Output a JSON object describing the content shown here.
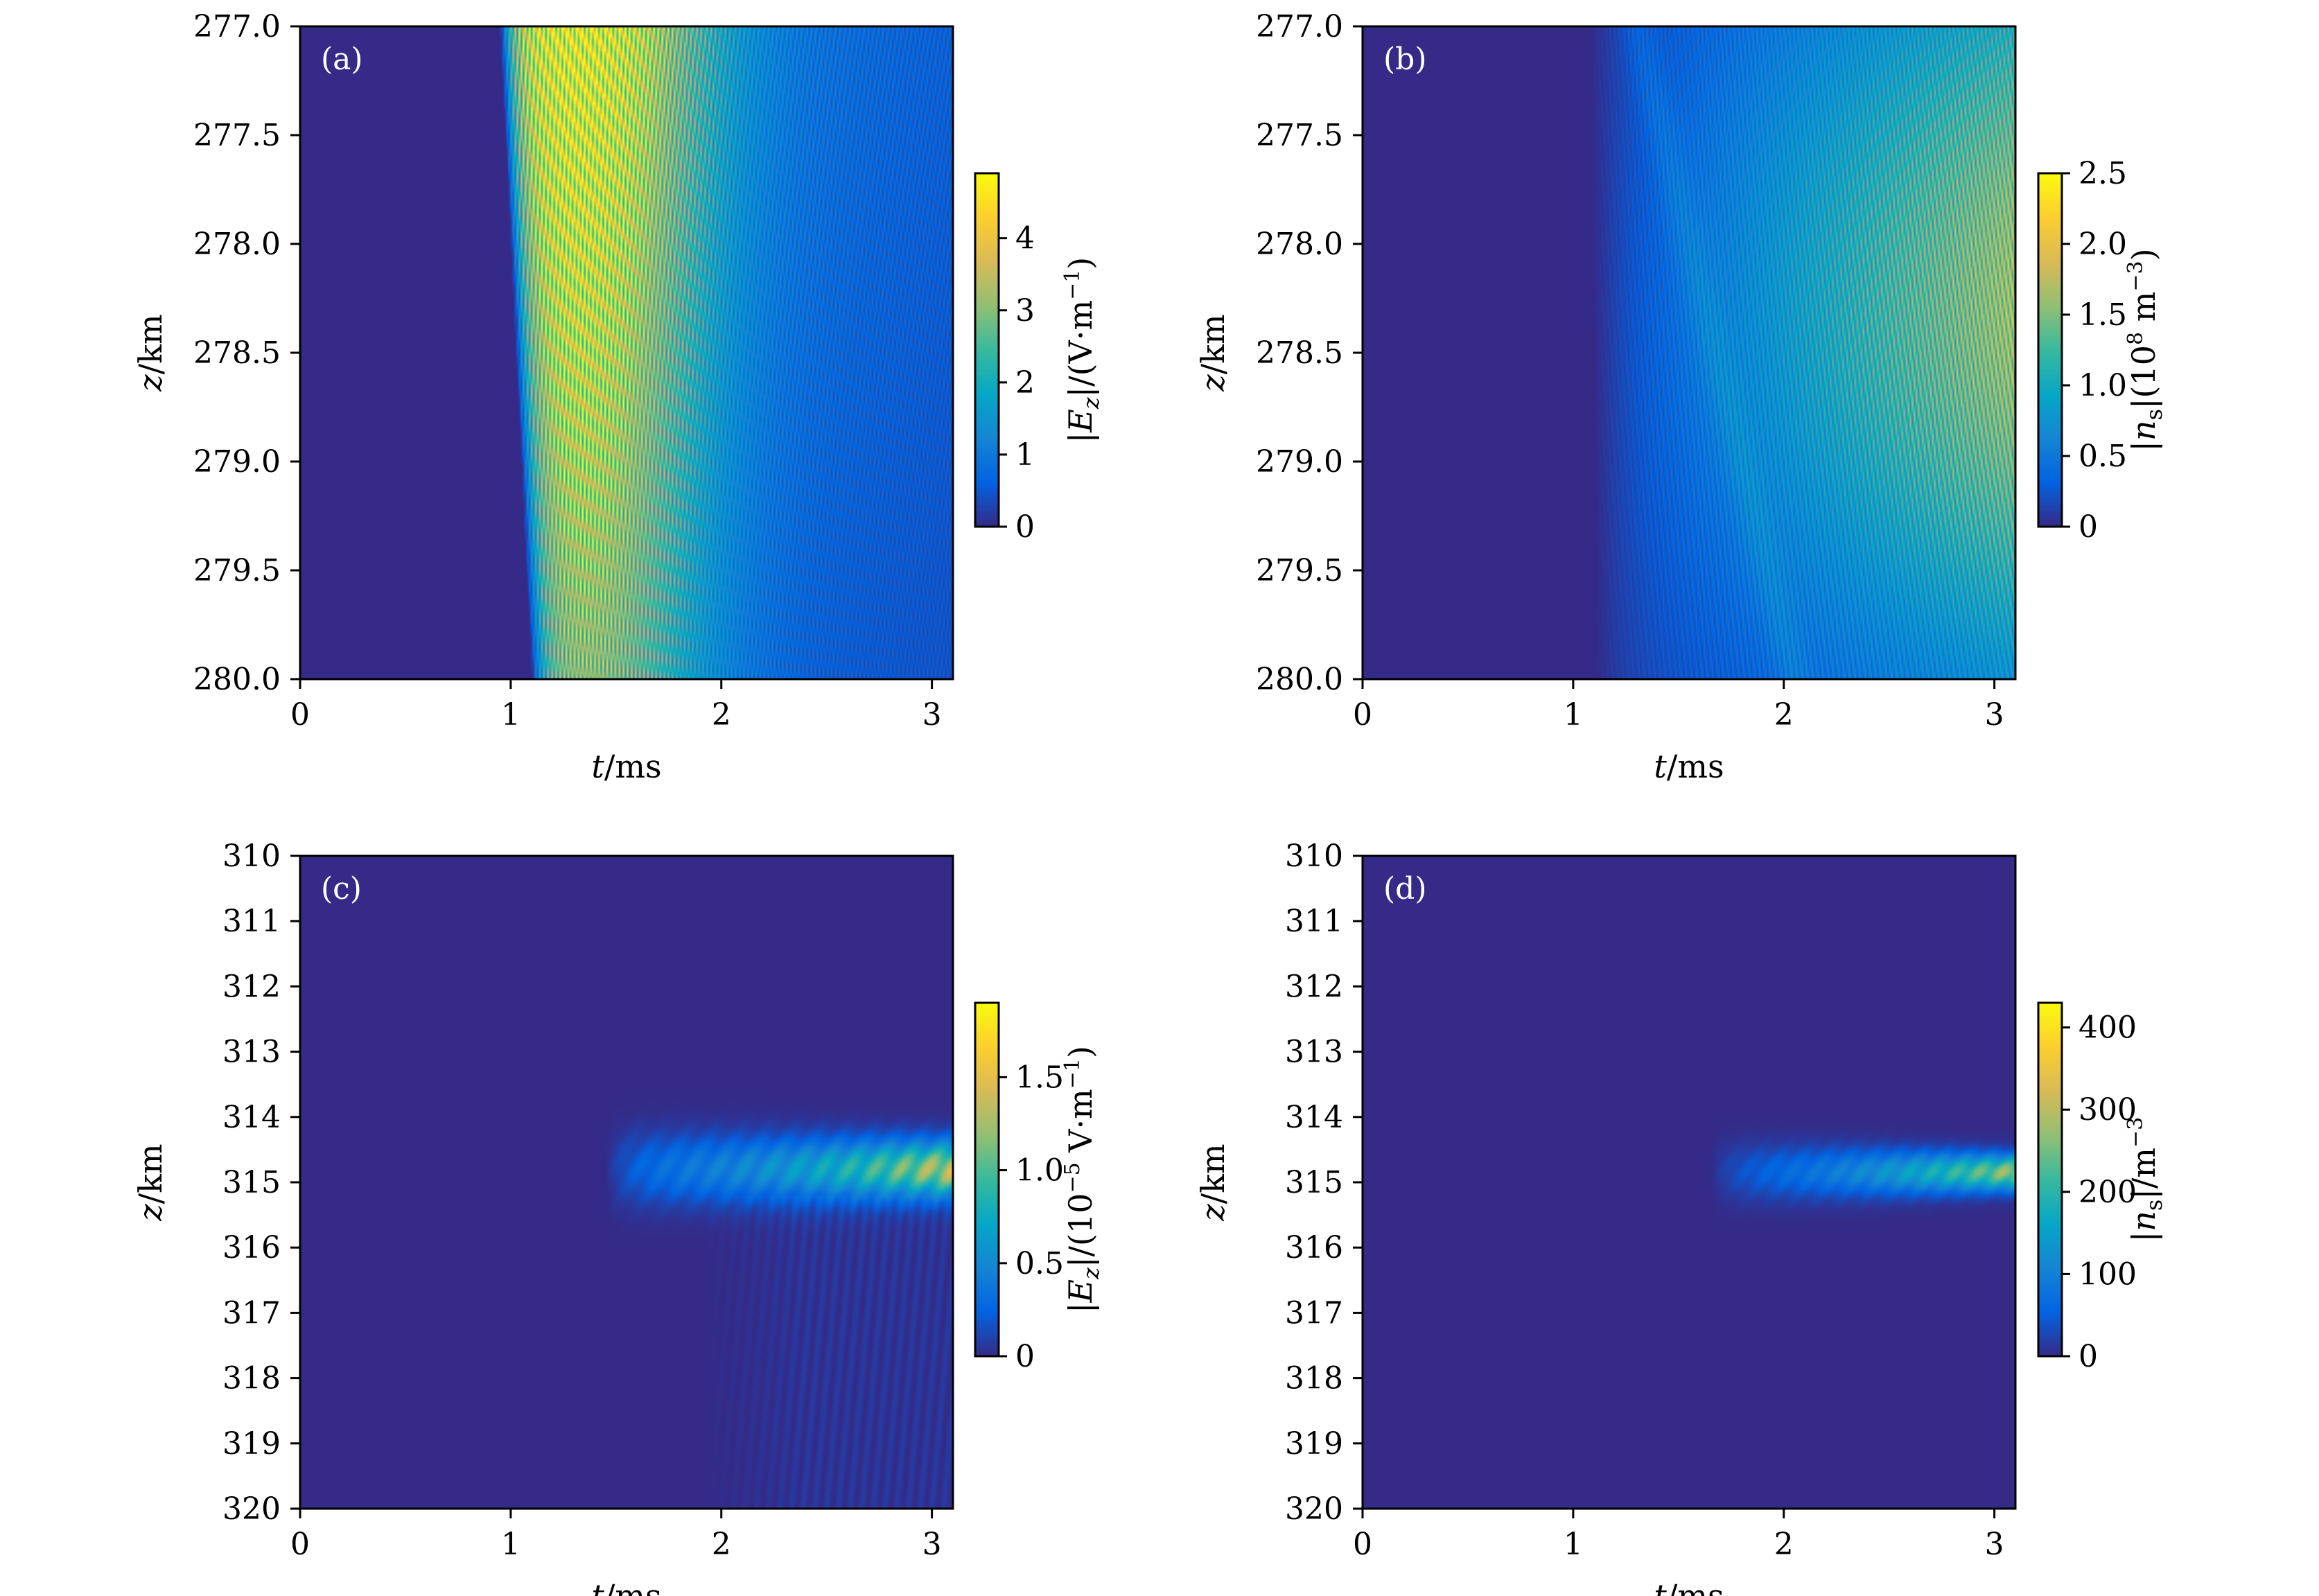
{
  "colormap": [
    "#352a87",
    "#0363e1",
    "#1485d4",
    "#06a7c6",
    "#38b99e",
    "#92bf73",
    "#d9ba56",
    "#fcce2e",
    "#f9fb0e"
  ],
  "chart_data": [
    {
      "type": "heatmap",
      "panel_label": "(a)",
      "xlabel": "t/ms",
      "ylabel": "z/km",
      "xlim": [
        0,
        3.1
      ],
      "ylim": [
        280.0,
        277.0
      ],
      "xticks": [
        "0",
        "1",
        "2",
        "3"
      ],
      "yticks": [
        "277.0",
        "277.5",
        "278.0",
        "278.5",
        "279.0",
        "279.5",
        "280.0"
      ],
      "colorbar": {
        "label": "|E_z|/(V·m^-1)",
        "range": [
          0,
          4.9
        ],
        "ticks": [
          "0",
          "1",
          "2",
          "3",
          "4"
        ]
      },
      "pattern": "onset at t≈0.95 ms near 277 km to ≈1.1 ms near 280 km; dense oblique fringes; peak ≈4.8 V/m near t≈1.3 ms, z≈278 km; decays toward later times and larger z"
    },
    {
      "type": "heatmap",
      "panel_label": "(b)",
      "xlabel": "t/ms",
      "ylabel": "z/km",
      "xlim": [
        0,
        3.1
      ],
      "ylim": [
        280.0,
        277.0
      ],
      "xticks": [
        "0",
        "1",
        "2",
        "3"
      ],
      "yticks": [
        "277.0",
        "277.5",
        "278.0",
        "278.5",
        "279.0",
        "279.5",
        "280.0"
      ],
      "colorbar": {
        "label": "|n_s|(10^8 m^-3)",
        "range": [
          0,
          2.5
        ],
        "ticks": [
          "0",
          "0.5",
          "1.0",
          "1.5",
          "2.0",
          "2.5"
        ]
      },
      "pattern": "onset at t≈1.1 ms; amplitude grows with time; maximum ≈2.2 at t≈3.1 ms, z≈278.3 km; dense oblique fringes"
    },
    {
      "type": "heatmap",
      "panel_label": "(c)",
      "xlabel": "t/ms",
      "ylabel": "z/km",
      "xlim": [
        0,
        3.1
      ],
      "ylim": [
        320,
        310
      ],
      "xticks": [
        "0",
        "1",
        "2",
        "3"
      ],
      "yticks": [
        "310",
        "311",
        "312",
        "313",
        "314",
        "315",
        "316",
        "317",
        "318",
        "319",
        "320"
      ],
      "colorbar": {
        "label": "|E_z|/(10^-5 V·m^-1)",
        "range": [
          0,
          1.9
        ],
        "ticks": [
          "0",
          "0.5",
          "1.0",
          "1.5"
        ]
      },
      "pattern": "horizontal beam centred at z≈314.8 km starting at t≈1.45 ms, narrowing and intensifying to ≈1.4 at t≈3.1 ms; faint oblique streaks below"
    },
    {
      "type": "heatmap",
      "panel_label": "(d)",
      "xlabel": "t/ms",
      "ylabel": "z/km",
      "xlim": [
        0,
        3.1
      ],
      "ylim": [
        320,
        310
      ],
      "xticks": [
        "0",
        "1",
        "2",
        "3"
      ],
      "yticks": [
        "310",
        "311",
        "312",
        "313",
        "314",
        "315",
        "316",
        "317",
        "318",
        "319",
        "320"
      ],
      "colorbar": {
        "label": "|n_s|/m^-3",
        "range": [
          0,
          430
        ],
        "ticks": [
          "0",
          "100",
          "200",
          "300",
          "400"
        ]
      },
      "pattern": "horizontal beam centred at z≈314.85 km starting at t≈1.65 ms, peak ≈300 m^-3 at t≈3.1 ms"
    }
  ]
}
